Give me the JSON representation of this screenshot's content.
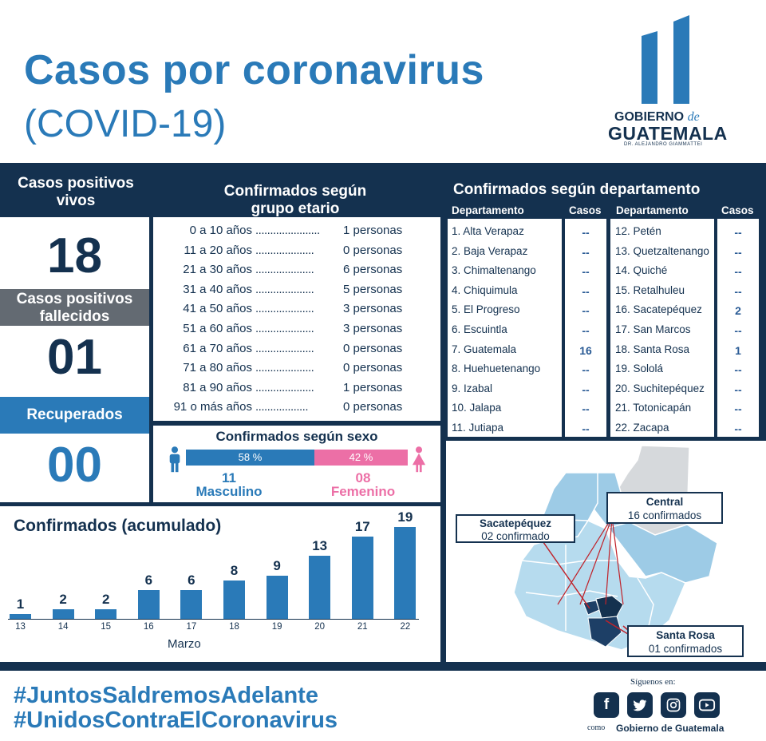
{
  "header": {
    "title": "Casos por coronavirus",
    "subtitle": "(COVID-19)",
    "logo": {
      "line1": "GOBIERNO",
      "line1_de": "de",
      "line2": "GUATEMALA",
      "line3": "DR. ALEJANDRO GIAMMATTEI"
    }
  },
  "left": {
    "vivos_label": "Casos positivos vivos",
    "vivos_value": "18",
    "fallecidos_label": "Casos positivos fallecidos",
    "fallecidos_value": "01",
    "recuperados_label": "Recuperados",
    "recuperados_value": "00"
  },
  "age": {
    "title": "Confirmados según grupo etario",
    "rows": [
      {
        "range": "0 a 10 años",
        "dots": "......................",
        "count": "1 personas"
      },
      {
        "range": "11 a 20 años",
        "dots": "....................",
        "count": "0 personas"
      },
      {
        "range": "21 a 30 años",
        "dots": "....................",
        "count": "6 personas"
      },
      {
        "range": "31 a 40 años",
        "dots": "....................",
        "count": "5 personas"
      },
      {
        "range": "41 a 50 años",
        "dots": "....................",
        "count": "3 personas"
      },
      {
        "range": "51 a 60 años",
        "dots": "....................",
        "count": "3 personas"
      },
      {
        "range": "61 a 70 años",
        "dots": "....................",
        "count": "0 personas"
      },
      {
        "range": "71 a 80 años",
        "dots": "....................",
        "count": "0 personas"
      },
      {
        "range": "81 a 90 años",
        "dots": "....................",
        "count": "1 personas"
      },
      {
        "range": "91 o más años",
        "dots": "..................",
        "count": "0 personas"
      }
    ]
  },
  "sex": {
    "title": "Confirmados según sexo",
    "male_pct": "58 %",
    "female_pct": "42 %",
    "male_fraction": 0.58,
    "male_count": "11",
    "male_label": "Masculino",
    "female_count": "08",
    "female_label": "Femenino",
    "male_color": "#2a7ab8",
    "female_color": "#ec6fa6"
  },
  "dept": {
    "title": "Confirmados según departamento",
    "col_dept": "Departamento",
    "col_cases": "Casos",
    "left": [
      {
        "name": "1. Alta Verapaz",
        "cases": "--"
      },
      {
        "name": "2. Baja Verapaz",
        "cases": "--"
      },
      {
        "name": "3. Chimaltenango",
        "cases": "--"
      },
      {
        "name": "4. Chiquimula",
        "cases": "--"
      },
      {
        "name": "5. El Progreso",
        "cases": "--"
      },
      {
        "name": "6. Escuintla",
        "cases": "--"
      },
      {
        "name": "7.  Guatemala",
        "cases": "16"
      },
      {
        "name": "8. Huehuetenango",
        "cases": "--"
      },
      {
        "name": "9. Izabal",
        "cases": "--"
      },
      {
        "name": "10. Jalapa",
        "cases": "--"
      },
      {
        "name": "11. Jutiapa",
        "cases": "--"
      }
    ],
    "right": [
      {
        "name": "12. Petén",
        "cases": "--"
      },
      {
        "name": "13. Quetzaltenango",
        "cases": "--"
      },
      {
        "name": "14. Quiché",
        "cases": "--"
      },
      {
        "name": "15. Retalhuleu",
        "cases": "--"
      },
      {
        "name": "16. Sacatepéquez",
        "cases": "2"
      },
      {
        "name": "17. San Marcos",
        "cases": "--"
      },
      {
        "name": "18. Santa Rosa",
        "cases": "1"
      },
      {
        "name": "19. Sololá",
        "cases": "--"
      },
      {
        "name": "20. Suchitepéquez",
        "cases": "--"
      },
      {
        "name": "21. Totonicapán",
        "cases": "--"
      },
      {
        "name": "22. Zacapa",
        "cases": "--"
      }
    ]
  },
  "map": {
    "sacatepequez": {
      "name": "Sacatepéquez",
      "detail": "02 confirmado"
    },
    "central": {
      "name": "Central",
      "detail": "16 confirmados"
    },
    "santarosa": {
      "name": "Santa Rosa",
      "detail": "01 confirmados"
    }
  },
  "chart_data": {
    "type": "bar",
    "title": "Confirmados (acumulado)",
    "xlabel": "Marzo",
    "categories": [
      "13",
      "14",
      "15",
      "16",
      "17",
      "18",
      "19",
      "20",
      "21",
      "22"
    ],
    "values": [
      1,
      2,
      2,
      6,
      6,
      8,
      9,
      13,
      17,
      19
    ],
    "ylim": [
      0,
      19
    ],
    "color": "#2a7ab8"
  },
  "footer": {
    "hashtag1": "#JuntosSaldremosAdelante",
    "hashtag2": "#UnidosContraElCoronavirus",
    "follow": "Síguenos en:",
    "como": "como",
    "account": "Gobierno de Guatemala",
    "icons": [
      "facebook-icon",
      "twitter-icon",
      "instagram-icon",
      "youtube-icon"
    ]
  }
}
